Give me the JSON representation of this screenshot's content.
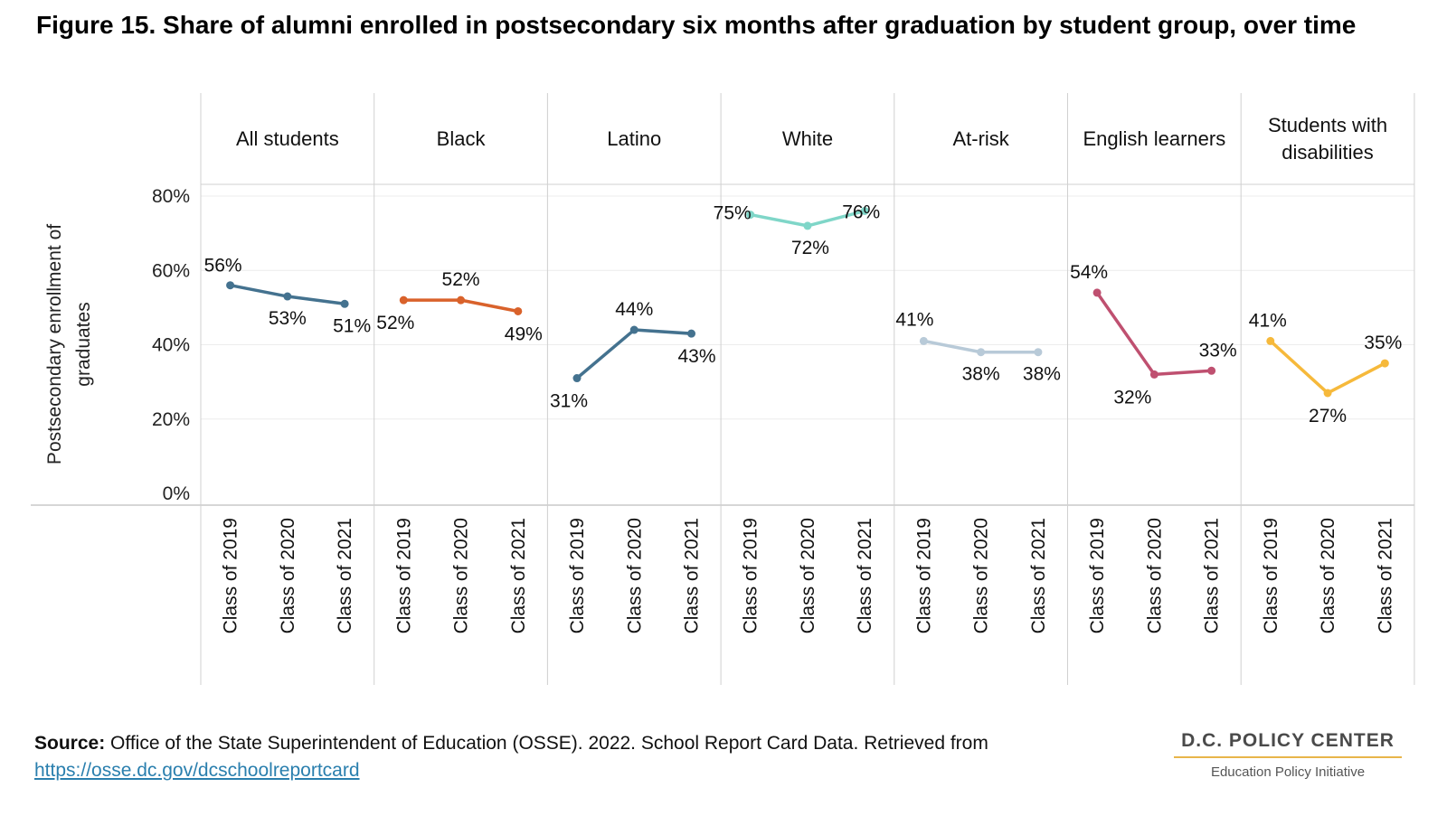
{
  "title": "Figure 15. Share of alumni enrolled in postsecondary six months after graduation by student group, over time",
  "source": {
    "label": "Source:",
    "text": "Office of the State Superintendent of Education (OSSE). 2022. School Report Card Data. Retrieved from",
    "link": "https://osse.dc.gov/dcschoolreportcard"
  },
  "logo": {
    "name": "D.C. POLICY CENTER",
    "subtitle": "Education Policy Initiative"
  },
  "chart_data": {
    "type": "line",
    "ylabel": "Postsecondary enrollment of graduates",
    "ylim": [
      0,
      80
    ],
    "yticks": [
      0,
      20,
      40,
      60,
      80
    ],
    "ytick_labels": [
      "0%",
      "20%",
      "40%",
      "60%",
      "80%"
    ],
    "grid": true,
    "categories": [
      "Class of 2019",
      "Class of 2020",
      "Class of 2021"
    ],
    "series": [
      {
        "name": "All students",
        "values": [
          56,
          53,
          51
        ],
        "labels": [
          "56%",
          "53%",
          "51%"
        ],
        "color": "#44728f"
      },
      {
        "name": "Black",
        "values": [
          52,
          52,
          49
        ],
        "labels": [
          "52%",
          "52%",
          "49%"
        ],
        "color": "#d9622b"
      },
      {
        "name": "Latino",
        "values": [
          31,
          44,
          43
        ],
        "labels": [
          "31%",
          "44%",
          "43%"
        ],
        "color": "#44728f"
      },
      {
        "name": "White",
        "values": [
          75,
          72,
          76
        ],
        "labels": [
          "75%",
          "72%",
          "76%"
        ],
        "color": "#7fd6c8"
      },
      {
        "name": "At-risk",
        "values": [
          41,
          38,
          38
        ],
        "labels": [
          "41%",
          "38%",
          "38%"
        ],
        "color": "#b8cad8"
      },
      {
        "name": "English learners",
        "values": [
          54,
          32,
          33
        ],
        "labels": [
          "54%",
          "32%",
          "33%"
        ],
        "color": "#bf5070"
      },
      {
        "name": "Students with disabilities",
        "values": [
          41,
          27,
          35
        ],
        "labels": [
          "41%",
          "27%",
          "35%"
        ],
        "color": "#f6b93b"
      }
    ]
  }
}
